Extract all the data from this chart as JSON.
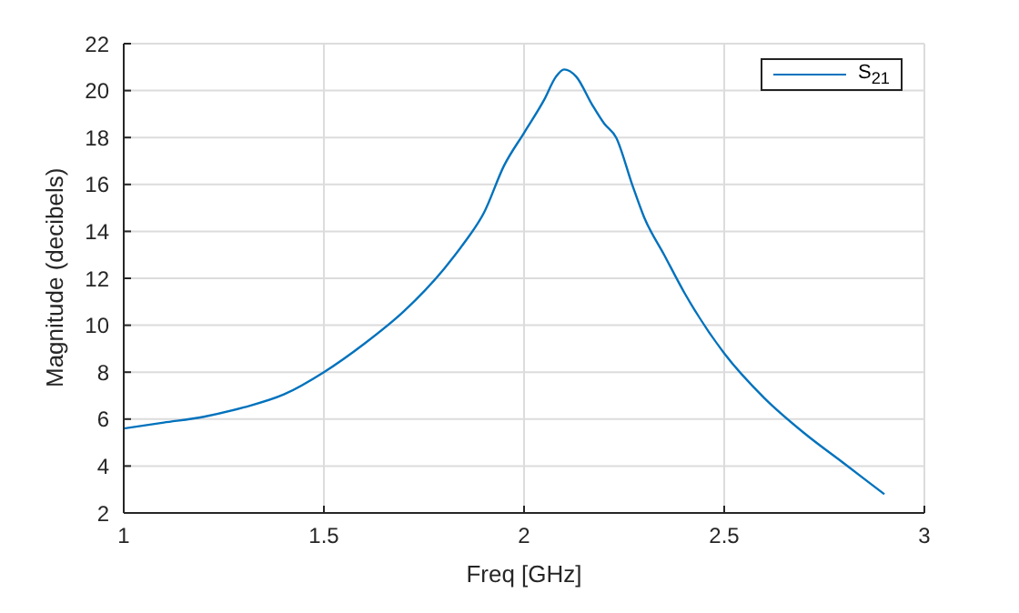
{
  "chart_data": {
    "type": "line",
    "xlabel": "Freq [GHz]",
    "ylabel": "Magnitude (decibels)",
    "x": [
      1,
      1.1,
      1.2,
      1.3,
      1.4,
      1.5,
      1.6,
      1.7,
      1.8,
      1.85,
      1.9,
      1.95,
      2.0,
      2.05,
      2.08,
      2.1,
      2.13,
      2.17,
      2.2,
      2.23,
      2.27,
      2.3,
      2.35,
      2.4,
      2.5,
      2.6,
      2.7,
      2.8,
      2.9
    ],
    "series": [
      {
        "name": "S$_{21}$",
        "color": "#0072bd",
        "values": [
          5.6,
          5.85,
          6.1,
          6.5,
          7.05,
          8.0,
          9.2,
          10.6,
          12.4,
          13.5,
          14.8,
          16.8,
          18.2,
          19.6,
          20.6,
          20.9,
          20.6,
          19.4,
          18.6,
          18.0,
          16.0,
          14.6,
          13.0,
          11.4,
          8.8,
          6.9,
          5.4,
          4.1,
          2.8
        ]
      }
    ],
    "xlim": [
      1,
      3
    ],
    "xticks": [
      1,
      1.5,
      2,
      2.5,
      3
    ],
    "ylim": [
      2,
      22
    ],
    "yticks": [
      2,
      4,
      6,
      8,
      10,
      12,
      14,
      16,
      18,
      20,
      22
    ],
    "grid": true,
    "legend": "top right",
    "marker": "none",
    "line_style": "solid"
  }
}
